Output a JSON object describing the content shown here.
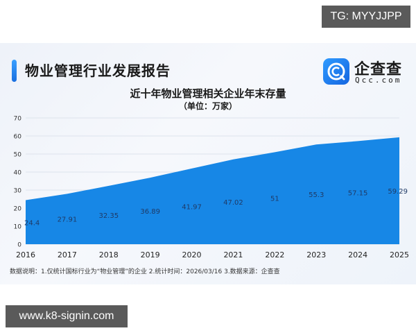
{
  "header": {
    "report_title": "物业管理行业发展报告",
    "logo_cn": "企查查",
    "logo_en": "Qcc.com"
  },
  "chart": {
    "title": "近十年物业管理相关企业年末存量",
    "subtitle": "（单位：万家）"
  },
  "footer_note": "数据说明：1.仅统计国标行业为“物业管理”的企业  2.统计时间：2026/03/16   3.数据来源：企查查",
  "watermarks": {
    "top": "TG: MYYJJPP",
    "bottom": "www.k8-signin.com"
  },
  "colors": {
    "area_fill": "#1787e6",
    "label_text": "#1f3a66",
    "grid": "#dde3ec"
  },
  "chart_data": {
    "type": "area",
    "title": "近十年物业管理相关企业年末存量",
    "subtitle": "（单位：万家）",
    "categories": [
      "2016",
      "2017",
      "2018",
      "2019",
      "2020",
      "2021",
      "2022",
      "2023",
      "2024",
      "2025"
    ],
    "values": [
      24.4,
      27.91,
      32.35,
      36.89,
      41.97,
      47.02,
      51,
      55.3,
      57.15,
      59.29
    ],
    "value_labels": [
      "24.4",
      "27.91",
      "32.35",
      "36.89",
      "41.97",
      "47.02",
      "51",
      "55.3",
      "57.15",
      "59.29"
    ],
    "xlabel": "",
    "ylabel": "万家",
    "ylim": [
      0,
      70
    ],
    "yticks": [
      "0",
      "10",
      "20",
      "30",
      "40",
      "50",
      "60",
      "70"
    ],
    "grid": true,
    "legend": null
  }
}
